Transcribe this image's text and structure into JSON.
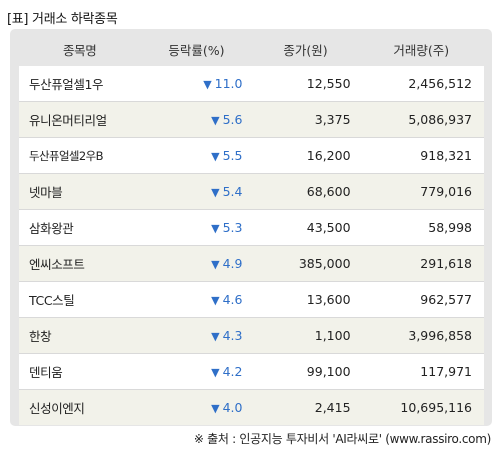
{
  "title": "[표] 거래소 하락종목",
  "headers": {
    "name": "종목명",
    "rate": "등락률(%)",
    "price": "종가(원)",
    "volume": "거래량(주)"
  },
  "down_symbol": "▼",
  "rows": [
    {
      "name": "두산퓨얼셀1우",
      "rate": "11.0",
      "price": "12,550",
      "volume": "2,456,512"
    },
    {
      "name": "유니온머티리얼",
      "rate": "5.6",
      "price": "3,375",
      "volume": "5,086,937"
    },
    {
      "name": "두산퓨얼셀2우B",
      "rate": "5.5",
      "price": "16,200",
      "volume": "918,321"
    },
    {
      "name": "넷마블",
      "rate": "5.4",
      "price": "68,600",
      "volume": "779,016"
    },
    {
      "name": "삼화왕관",
      "rate": "5.3",
      "price": "43,500",
      "volume": "58,998"
    },
    {
      "name": "엔씨소프트",
      "rate": "4.9",
      "price": "385,000",
      "volume": "291,618"
    },
    {
      "name": "TCC스틸",
      "rate": "4.6",
      "price": "13,600",
      "volume": "962,577"
    },
    {
      "name": "한창",
      "rate": "4.3",
      "price": "1,100",
      "volume": "3,996,858"
    },
    {
      "name": "덴티움",
      "rate": "4.2",
      "price": "99,100",
      "volume": "117,971"
    },
    {
      "name": "신성이엔지",
      "rate": "4.0",
      "price": "2,415",
      "volume": "10,695,116"
    }
  ],
  "source": "※ 출처 : 인공지능 투자비서 'AI라씨로' (www.rassiro.com)"
}
